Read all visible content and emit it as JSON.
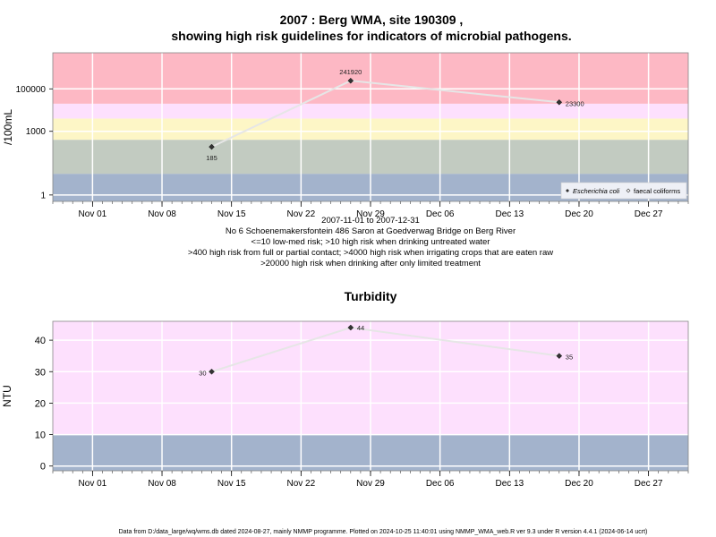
{
  "header": {
    "title_line1": "2007 : Berg WMA, site 190309 ,",
    "title_line2": "showing high risk guidelines for indicators of microbial pathogens."
  },
  "chart_data": [
    {
      "type": "scatter",
      "title": "2007 : Berg WMA, site 190309 , showing high risk guidelines for indicators of microbial pathogens.",
      "ylabel": "/100mL",
      "y_scale": "log",
      "x_axis_type": "date",
      "xlim": [
        "2007-10-28",
        "2007-12-31"
      ],
      "ylim": [
        0.5,
        5000000
      ],
      "x_ticks": [
        {
          "date": "2007-11-01",
          "label": "Nov 01"
        },
        {
          "date": "2007-11-08",
          "label": "Nov 08"
        },
        {
          "date": "2007-11-15",
          "label": "Nov 15"
        },
        {
          "date": "2007-11-22",
          "label": "Nov 22"
        },
        {
          "date": "2007-11-29",
          "label": "Nov 29"
        },
        {
          "date": "2007-12-06",
          "label": "Dec 06"
        },
        {
          "date": "2007-12-13",
          "label": "Dec 13"
        },
        {
          "date": "2007-12-20",
          "label": "Dec 20"
        },
        {
          "date": "2007-12-27",
          "label": "Dec 27"
        }
      ],
      "y_ticks": [
        {
          "value": 1,
          "label": "1"
        },
        {
          "value": 1000,
          "label": "1000"
        },
        {
          "value": 100000,
          "label": "100000"
        }
      ],
      "bands": [
        {
          "from": 0.5,
          "to": 10,
          "color": "#a3b3cc"
        },
        {
          "from": 10,
          "to": 400,
          "color": "#c2cbc1"
        },
        {
          "from": 400,
          "to": 4000,
          "color": "#fdf6c6"
        },
        {
          "from": 4000,
          "to": 20000,
          "color": "#fde0fd"
        },
        {
          "from": 20000,
          "to": 5000000,
          "color": "#fdb8c4"
        }
      ],
      "series": [
        {
          "name": "Escherichia coli",
          "marker": "filled-diamond",
          "color": "#333333",
          "x": [
            "2007-11-13",
            "2007-11-27",
            "2007-12-18"
          ],
          "y": [
            185,
            241920,
            23300
          ],
          "labels": [
            "185",
            "241920",
            "23300"
          ]
        }
      ],
      "legend": {
        "position": "bottom-right",
        "entries": [
          {
            "name": "Escherichia coli",
            "marker": "filled-diamond"
          },
          {
            "name": "faecal coliforms",
            "marker": "open-diamond"
          }
        ]
      },
      "grid": true
    },
    {
      "type": "scatter",
      "title": "Turbidity",
      "ylabel": "NTU",
      "y_scale": "linear",
      "x_axis_type": "date",
      "xlim": [
        "2007-10-28",
        "2007-12-31"
      ],
      "ylim": [
        -1.5,
        46
      ],
      "x_ticks": [
        {
          "date": "2007-11-01",
          "label": "Nov 01"
        },
        {
          "date": "2007-11-08",
          "label": "Nov 08"
        },
        {
          "date": "2007-11-15",
          "label": "Nov 15"
        },
        {
          "date": "2007-11-22",
          "label": "Nov 22"
        },
        {
          "date": "2007-11-29",
          "label": "Nov 29"
        },
        {
          "date": "2007-12-06",
          "label": "Dec 06"
        },
        {
          "date": "2007-12-13",
          "label": "Dec 13"
        },
        {
          "date": "2007-12-20",
          "label": "Dec 20"
        },
        {
          "date": "2007-12-27",
          "label": "Dec 27"
        }
      ],
      "y_ticks": [
        {
          "value": 0,
          "label": "0"
        },
        {
          "value": 10,
          "label": "10"
        },
        {
          "value": 20,
          "label": "20"
        },
        {
          "value": 30,
          "label": "30"
        },
        {
          "value": 40,
          "label": "40"
        }
      ],
      "bands": [
        {
          "from": -1.5,
          "to": 10,
          "color": "#a3b3cc"
        },
        {
          "from": 10,
          "to": 46,
          "color": "#fde0fd"
        }
      ],
      "series": [
        {
          "marker": "filled-diamond",
          "color": "#333333",
          "x": [
            "2007-11-13",
            "2007-11-27",
            "2007-12-18"
          ],
          "y": [
            30,
            44,
            35
          ],
          "labels": [
            "30",
            "44",
            "35"
          ]
        }
      ],
      "grid": true
    }
  ],
  "info_lines": [
    "2007-11-01 to 2007-12-31",
    "No 6 Schoenemakersfontein 486 Saron at Goedverwag Bridge on Berg River",
    "<=10 low-med risk; >10 high risk when drinking untreated water",
    ">400 high risk from full or partial contact; >4000 high risk when irrigating crops that are eaten raw",
    ">20000 high risk when drinking after only limited treatment"
  ],
  "footer": "Data from D:/data_large/wq/wms.db dated 2024-08-27, mainly NMMP programme. Plotted on 2024-10-25 11:40:01 using NMMP_WMA_web.R ver 9.3 under R version 4.4.1 (2024-06-14 ucrt)"
}
